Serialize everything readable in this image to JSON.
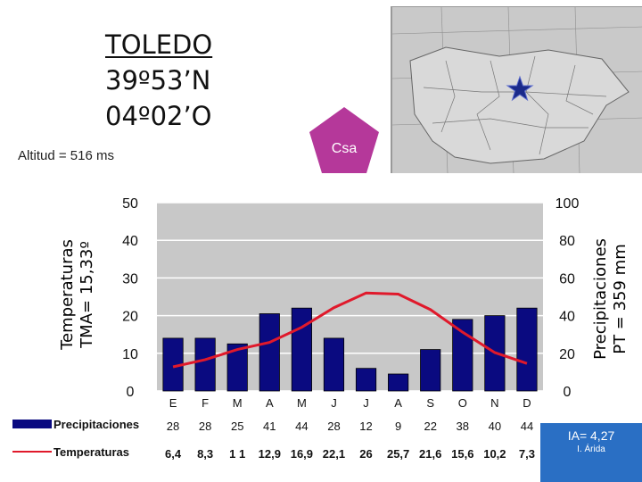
{
  "header": {
    "title_lines": [
      "TOLEDO",
      "39º53’N",
      "04º02’O"
    ],
    "altitude": "Altitud = 516 ms",
    "climate_code": "Csa"
  },
  "colors": {
    "bar": "#0a0a80",
    "line": "#e0192b",
    "plot_bg": "#c8c8c8",
    "pentagon": "#b5389a",
    "ia_box": "#2a6fc4",
    "map_star": "#1a2a8a"
  },
  "chart_data": {
    "type": "bar+line",
    "categories": [
      "E",
      "F",
      "M",
      "A",
      "M",
      "J",
      "J",
      "A",
      "S",
      "O",
      "N",
      "D"
    ],
    "y_left": {
      "label_lines": [
        "Temperaturas",
        "TMA= 15,33º"
      ],
      "ticks": [
        "0",
        "10",
        "20",
        "30",
        "40",
        "50"
      ],
      "lim": [
        0,
        50
      ]
    },
    "y_right": {
      "label_lines": [
        "Precipitaciones",
        "PT = 359 mm"
      ],
      "ticks": [
        "0",
        "20",
        "40",
        "60",
        "80",
        "100"
      ],
      "lim": [
        0,
        100
      ]
    },
    "series": [
      {
        "name": "Precipitaciones",
        "axis": "right",
        "kind": "bar",
        "values": [
          28,
          28,
          25,
          41,
          44,
          28,
          12,
          9,
          22,
          38,
          40,
          44
        ],
        "labels": [
          "28",
          "28",
          "25",
          "41",
          "44",
          "28",
          "12",
          "9",
          "22",
          "38",
          "40",
          "44"
        ]
      },
      {
        "name": "Temperaturas",
        "axis": "left",
        "kind": "line",
        "values": [
          6.4,
          8.3,
          11,
          12.9,
          16.9,
          22.1,
          26,
          25.7,
          21.6,
          15.6,
          10.2,
          7.3
        ],
        "labels": [
          "6,4",
          "8,3",
          "1 1",
          "12,9",
          "16,9",
          "22,1",
          "26",
          "25,7",
          "21,6",
          "15,6",
          "10,2",
          "7,3"
        ]
      }
    ],
    "grid": true,
    "legend": "table below chart"
  },
  "aridity": {
    "value": "IA= 4,27",
    "class": "I. Árida"
  }
}
